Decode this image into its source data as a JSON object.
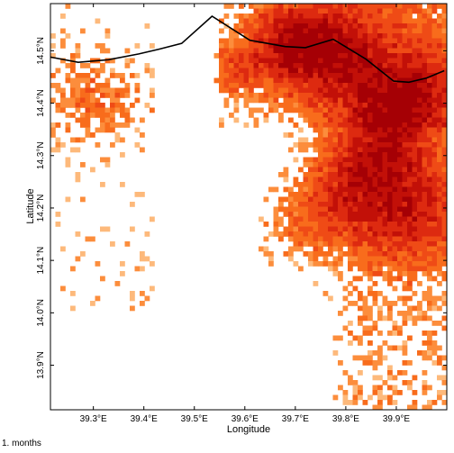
{
  "map": {
    "x_axis_label": "Longitude",
    "y_axis_label": "Latitude",
    "x_ticks": [
      {
        "lon": 39.3,
        "label": "39.3°E"
      },
      {
        "lon": 39.4,
        "label": "39.4°E"
      },
      {
        "lon": 39.5,
        "label": "39.5°E"
      },
      {
        "lon": 39.6,
        "label": "39.6°E"
      },
      {
        "lon": 39.7,
        "label": "39.7°E"
      },
      {
        "lon": 39.8,
        "label": "39.8°E"
      },
      {
        "lon": 39.9,
        "label": "39.9°E"
      }
    ],
    "y_ticks": [
      {
        "lat": 13.9,
        "label": "13.9°N"
      },
      {
        "lat": 14.0,
        "label": "14.0°N"
      },
      {
        "lat": 14.1,
        "label": "14.1°N"
      },
      {
        "lat": 14.2,
        "label": "14.2°N"
      },
      {
        "lat": 14.3,
        "label": "14.3°N"
      },
      {
        "lat": 14.4,
        "label": "14.4°N"
      },
      {
        "lat": 14.5,
        "label": "14.5°N"
      }
    ],
    "lon_range": [
      39.215,
      40.0
    ],
    "lat_range": [
      13.815,
      14.59
    ],
    "boundary_line": [
      [
        39.215,
        14.488
      ],
      [
        39.27,
        14.478
      ],
      [
        39.33,
        14.483
      ],
      [
        39.39,
        14.494
      ],
      [
        39.43,
        14.503
      ],
      [
        39.475,
        14.514
      ],
      [
        39.535,
        14.566
      ],
      [
        39.61,
        14.52
      ],
      [
        39.68,
        14.508
      ],
      [
        39.72,
        14.506
      ],
      [
        39.775,
        14.522
      ],
      [
        39.84,
        14.484
      ],
      [
        39.895,
        14.442
      ],
      [
        39.925,
        14.44
      ],
      [
        39.96,
        14.448
      ],
      [
        39.995,
        14.462
      ]
    ],
    "footer_note": "1. months",
    "palette": [
      "#fdb97b",
      "#fc8d3c",
      "#f86c1c",
      "#ef4b16",
      "#dd2a10",
      "#c21008",
      "#a50005"
    ],
    "hotspots": [
      {
        "lon": 39.76,
        "lat": 14.49,
        "r": 0.11,
        "w": 1.0
      },
      {
        "lon": 39.93,
        "lat": 14.42,
        "r": 0.09,
        "w": 0.9
      },
      {
        "lon": 39.92,
        "lat": 14.2,
        "r": 0.12,
        "w": 0.95
      },
      {
        "lon": 39.78,
        "lat": 14.25,
        "r": 0.1,
        "w": 0.7
      },
      {
        "lon": 39.68,
        "lat": 14.52,
        "r": 0.09,
        "w": 0.75
      },
      {
        "lon": 39.88,
        "lat": 14.33,
        "r": 0.08,
        "w": 0.6
      },
      {
        "lon": 39.3,
        "lat": 14.41,
        "r": 0.09,
        "w": 0.45
      },
      {
        "lon": 39.58,
        "lat": 14.46,
        "r": 0.05,
        "w": 0.5
      },
      {
        "lon": 39.7,
        "lat": 14.15,
        "r": 0.08,
        "w": 0.5
      }
    ]
  }
}
